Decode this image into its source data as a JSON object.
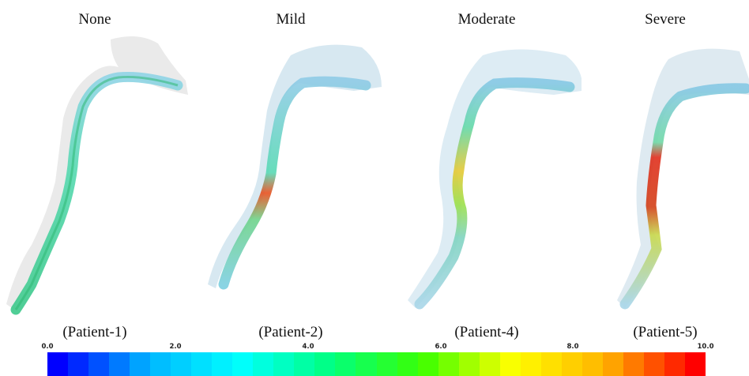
{
  "panels": [
    {
      "title": "None",
      "caption": "(Patient-1)"
    },
    {
      "title": "Mild",
      "caption": "(Patient-2)"
    },
    {
      "title": "Moderate",
      "caption": "(Patient-4)"
    },
    {
      "title": "Severe",
      "caption": "(Patient-5)"
    }
  ],
  "colorbar": {
    "min": 0.0,
    "max": 10.0,
    "tick_labels": [
      "0.0",
      "2.0",
      "4.0",
      "6.0",
      "8.0",
      "10.0"
    ],
    "tick_values": [
      0,
      2,
      4,
      6,
      8,
      10
    ],
    "segments": 32,
    "colormap_stops": [
      "#0000ff",
      "#00b4ff",
      "#00ffff",
      "#00ff80",
      "#3cff00",
      "#ffff00",
      "#ffb400",
      "#ff0000"
    ]
  },
  "colors": {
    "airway_shell": "#c8c8c8",
    "flow_low": "#7ec8e0",
    "flow_mid": "#4fd6a0",
    "flow_high": "#e23a1a"
  }
}
